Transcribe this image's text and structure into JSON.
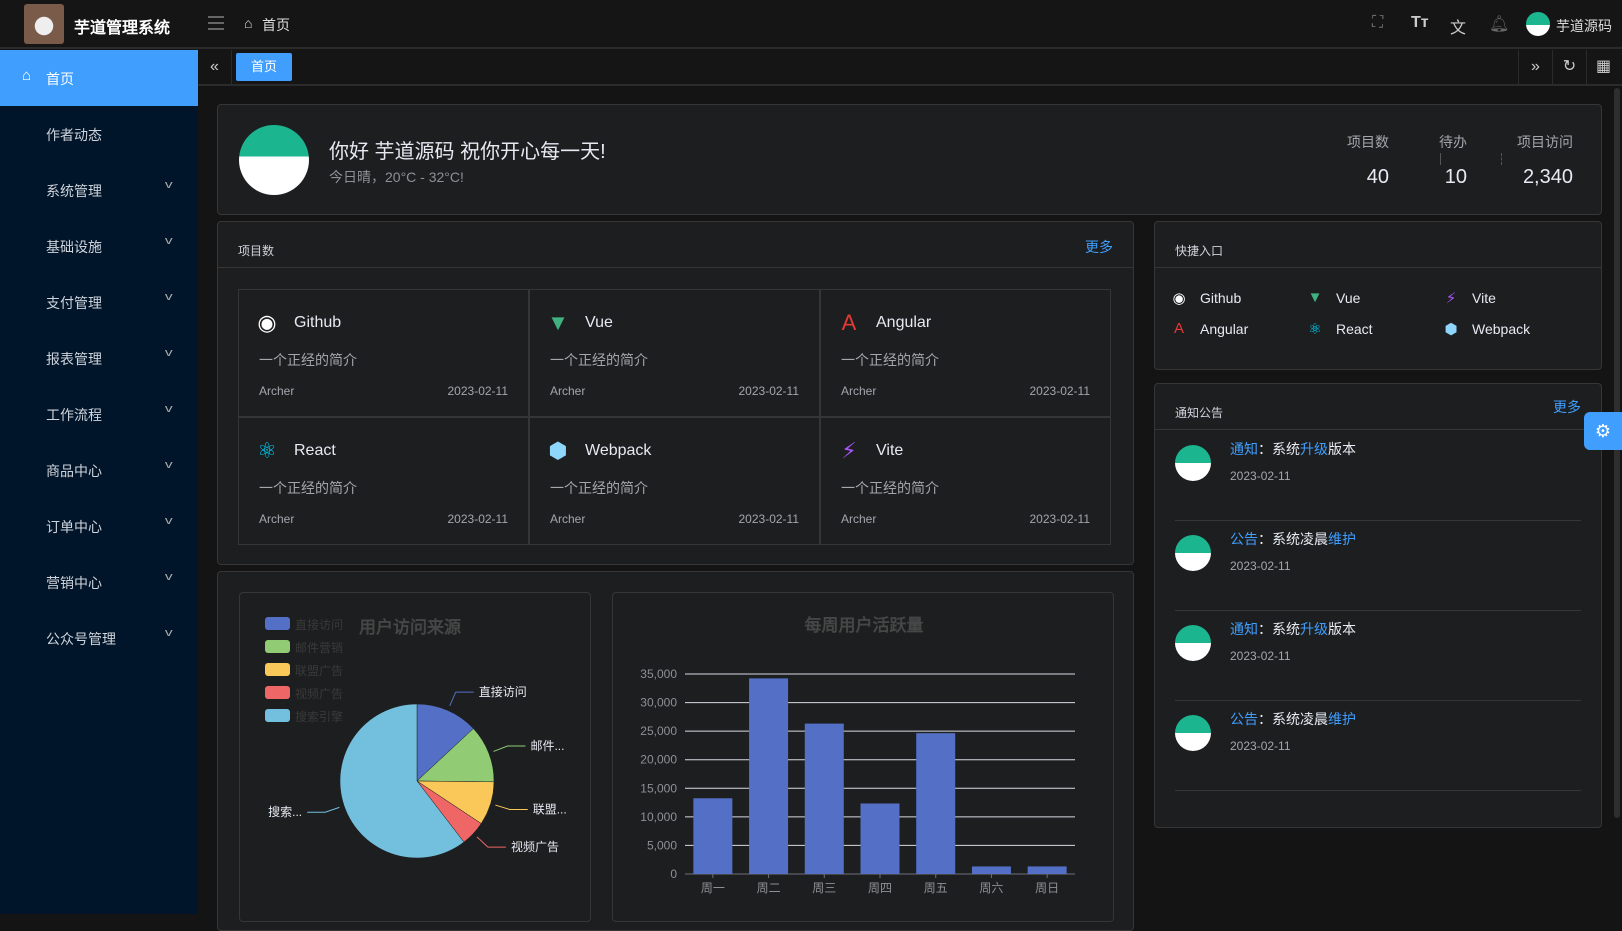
{
  "header": {
    "app_title": "芋道管理系统",
    "breadcrumb": "首页",
    "username": "芋道源码",
    "icons": [
      "fullscreen-icon",
      "font-size-icon",
      "translate-icon",
      "bell-icon"
    ]
  },
  "sidebar": {
    "items": [
      {
        "label": "首页",
        "icon": "home-icon",
        "active": true
      },
      {
        "label": "作者动态"
      },
      {
        "label": "系统管理",
        "expandable": true
      },
      {
        "label": "基础设施",
        "expandable": true
      },
      {
        "label": "支付管理",
        "expandable": true
      },
      {
        "label": "报表管理",
        "expandable": true
      },
      {
        "label": "工作流程",
        "expandable": true
      },
      {
        "label": "商品中心",
        "expandable": true
      },
      {
        "label": "订单中心",
        "expandable": true
      },
      {
        "label": "营销中心",
        "expandable": true
      },
      {
        "label": "公众号管理",
        "expandable": true
      }
    ]
  },
  "tags": {
    "active": "首页"
  },
  "welcome": {
    "greeting": "你好 芋道源码 祝你开心每一天!",
    "weather": "今日晴，20°C - 32°C!",
    "stats": [
      {
        "label": "项目数",
        "value": "40"
      },
      {
        "label": "待办",
        "value": "10"
      },
      {
        "label": "项目访问",
        "value": "2,340"
      }
    ]
  },
  "projects": {
    "title": "项目数",
    "more": "更多",
    "items": [
      {
        "name": "Github",
        "desc": "一个正经的简介",
        "author": "Archer",
        "date": "2023-02-11",
        "icon": "github-icon",
        "color": "#ffffff"
      },
      {
        "name": "Vue",
        "desc": "一个正经的简介",
        "author": "Archer",
        "date": "2023-02-11",
        "icon": "vue-icon",
        "color": "#3fb27f"
      },
      {
        "name": "Angular",
        "desc": "一个正经的简介",
        "author": "Archer",
        "date": "2023-02-11",
        "icon": "angular-icon",
        "color": "#e53935"
      },
      {
        "name": "React",
        "desc": "一个正经的简介",
        "author": "Archer",
        "date": "2023-02-11",
        "icon": "react-icon",
        "color": "#00d8ff"
      },
      {
        "name": "Webpack",
        "desc": "一个正经的简介",
        "author": "Archer",
        "date": "2023-02-11",
        "icon": "webpack-icon",
        "color": "#8ed6fb"
      },
      {
        "name": "Vite",
        "desc": "一个正经的简介",
        "author": "Archer",
        "date": "2023-02-11",
        "icon": "vite-icon",
        "color": "#a855f7"
      }
    ]
  },
  "shortcuts": {
    "title": "快捷入口",
    "items": [
      {
        "name": "Github",
        "icon": "github-icon",
        "color": "#ffffff"
      },
      {
        "name": "Vue",
        "icon": "vue-icon",
        "color": "#3fb27f"
      },
      {
        "name": "Vite",
        "icon": "vite-icon",
        "color": "#a855f7"
      },
      {
        "name": "Angular",
        "icon": "angular-icon",
        "color": "#e53935"
      },
      {
        "name": "React",
        "icon": "react-icon",
        "color": "#00d8ff"
      },
      {
        "name": "Webpack",
        "icon": "webpack-icon",
        "color": "#8ed6fb"
      }
    ]
  },
  "notices": {
    "title": "通知公告",
    "more": "更多",
    "items": [
      {
        "type": "通知",
        "sep": "：",
        "parts": [
          "系统",
          "升级",
          "版本"
        ],
        "date": "2023-02-11"
      },
      {
        "type": "公告",
        "sep": "：",
        "parts": [
          "系统凌晨",
          "维护",
          ""
        ],
        "date": "2023-02-11"
      },
      {
        "type": "通知",
        "sep": "：",
        "parts": [
          "系统",
          "升级",
          "版本"
        ],
        "date": "2023-02-11"
      },
      {
        "type": "公告",
        "sep": "：",
        "parts": [
          "系统凌晨",
          "维护",
          ""
        ],
        "date": "2023-02-11"
      }
    ]
  },
  "chart_data": [
    {
      "type": "pie",
      "title": "用户访问来源",
      "legend_position": "top-left",
      "categories": [
        "直接访问",
        "邮件营销",
        "联盟广告",
        "视频广告",
        "搜索引擎"
      ],
      "values": [
        335,
        310,
        234,
        135,
        1548
      ],
      "slice_labels": [
        "直接访问",
        "邮件...",
        "联盟...",
        "视频广告",
        "搜索..."
      ],
      "colors": [
        "#5470c6",
        "#91cc75",
        "#fac858",
        "#ee6666",
        "#73c0de"
      ]
    },
    {
      "type": "bar",
      "title": "每周用户活跃量",
      "categories": [
        "周一",
        "周二",
        "周三",
        "周四",
        "周五",
        "周六",
        "周日"
      ],
      "values": [
        13253,
        34235,
        26321,
        12340,
        24643,
        1322,
        1324
      ],
      "yticks": [
        "0",
        "5,000",
        "10,000",
        "15,000",
        "20,000",
        "25,000",
        "30,000",
        "35,000"
      ],
      "ylim": [
        0,
        35000
      ],
      "grid": true,
      "color": "#5470c6"
    }
  ]
}
